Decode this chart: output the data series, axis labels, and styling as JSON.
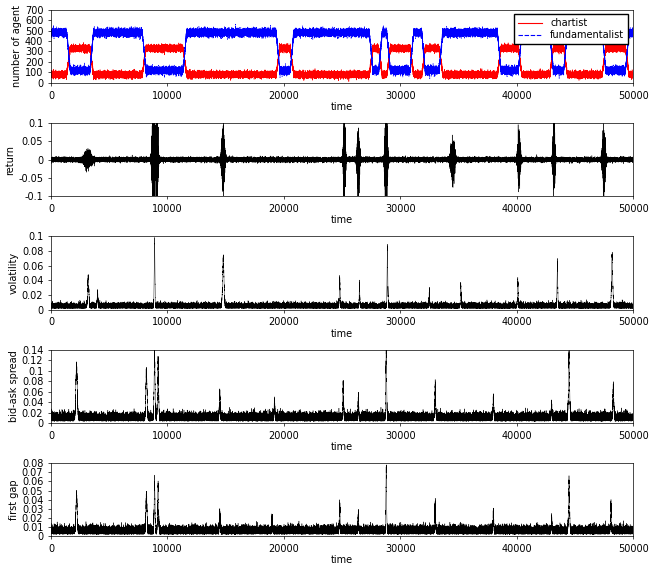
{
  "xlim": [
    0,
    50000
  ],
  "time_steps": 50000,
  "panel1": {
    "ylabel": "number of agent",
    "xlabel": "time",
    "ylim": [
      0,
      700
    ],
    "yticks": [
      0,
      100,
      200,
      300,
      400,
      500,
      600,
      700
    ],
    "legend_chartist": "chartist",
    "legend_fundamentalist": "fundamentalist",
    "color_chartist": "#ff0000",
    "color_fundamentalist": "#0000ff"
  },
  "panel2": {
    "ylabel": "return",
    "xlabel": "time",
    "ylim": [
      -0.1,
      0.1
    ],
    "yticks": [
      -0.1,
      -0.05,
      0.0,
      0.05,
      0.1
    ]
  },
  "panel3": {
    "ylabel": "volatility",
    "xlabel": "time",
    "ylim": [
      0,
      0.1
    ],
    "yticks": [
      0,
      0.02,
      0.04,
      0.06,
      0.08,
      0.1
    ]
  },
  "panel4": {
    "ylabel": "bid-ask spread",
    "xlabel": "time",
    "ylim": [
      0,
      0.14
    ],
    "yticks": [
      0,
      0.02,
      0.04,
      0.06,
      0.08,
      0.1,
      0.12,
      0.14
    ]
  },
  "panel5": {
    "ylabel": "first gap",
    "xlabel": "time",
    "ylim": [
      0,
      0.08
    ],
    "yticks": [
      0,
      0.01,
      0.02,
      0.03,
      0.04,
      0.05,
      0.06,
      0.07,
      0.08
    ]
  },
  "xticks": [
    0,
    10000,
    20000,
    30000,
    40000,
    50000
  ],
  "xtick_labels": [
    "0",
    "10000",
    "20000",
    "30000",
    "40000",
    "50000"
  ],
  "line_color": "#000000",
  "bg_color": "#ffffff",
  "font_size": 7,
  "seed": 42
}
